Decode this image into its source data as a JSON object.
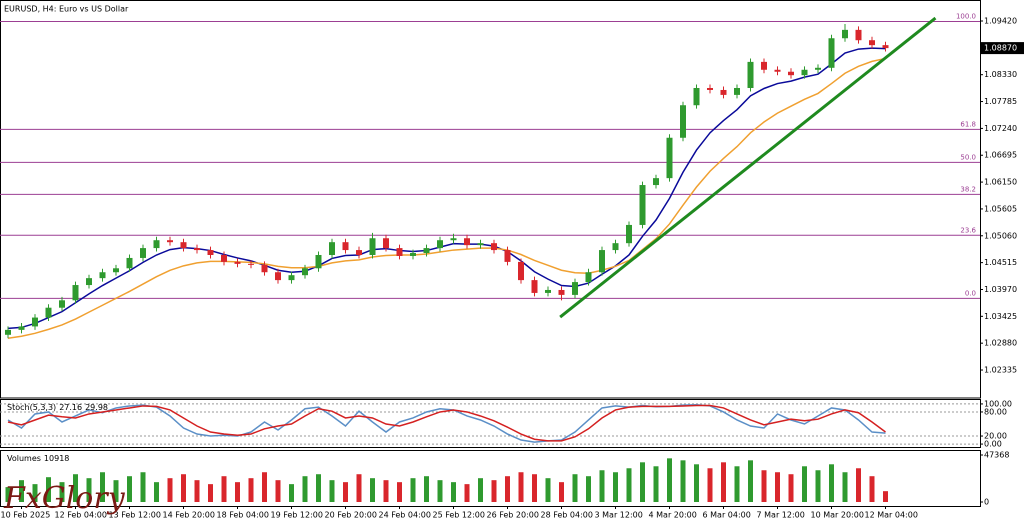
{
  "chart_data": [
    {
      "type": "candlestick",
      "title": "EURUSD, H4:  Euro vs US Dollar",
      "categories": [
        null,
        "10 Feb 2025",
        null,
        null,
        null,
        "12 Feb 04:00",
        null,
        null,
        null,
        "13 Feb 12:00",
        null,
        null,
        null,
        "14 Feb 20:00",
        null,
        null,
        null,
        "18 Feb 04:00",
        null,
        null,
        null,
        "19 Feb 12:00",
        null,
        null,
        null,
        "20 Feb 20:00",
        null,
        null,
        null,
        "24 Feb 04:00",
        null,
        null,
        null,
        "25 Feb 12:00",
        null,
        null,
        null,
        "26 Feb 20:00",
        null,
        null,
        null,
        "28 Feb 04:00",
        null,
        null,
        null,
        "3 Mar 12:00",
        null,
        null,
        null,
        "4 Mar 20:00",
        null,
        null,
        null,
        "6 Mar 04:00",
        null,
        null,
        null,
        "7 Mar 12:00",
        null,
        null,
        null,
        "10 Mar 20:00",
        null,
        null,
        null,
        "12 Mar 04:00"
      ],
      "open": [
        1.0305,
        1.0315,
        1.0322,
        1.034,
        1.036,
        1.0375,
        1.0406,
        1.042,
        1.0432,
        1.044,
        1.0461,
        1.0481,
        1.0497,
        1.0493,
        1.0481,
        1.0477,
        1.0467,
        1.0453,
        1.0449,
        1.0447,
        1.0432,
        1.0416,
        1.0426,
        1.044,
        1.0467,
        1.0493,
        1.0477,
        1.0467,
        1.0501,
        1.0481,
        1.0465,
        1.0471,
        1.0481,
        1.0497,
        1.0501,
        1.0487,
        1.0491,
        1.0477,
        1.0453,
        1.0416,
        1.039,
        1.0396,
        1.0386,
        1.0412,
        1.0432,
        1.0477,
        1.0491,
        1.0528,
        1.0609,
        1.0623,
        1.0705,
        1.0771,
        1.0806,
        1.0802,
        1.0792,
        1.0806,
        1.0859,
        1.0843,
        1.0839,
        1.0832,
        1.0843,
        1.0847,
        1.0907,
        1.0924,
        1.0903,
        1.0893
      ],
      "high": [
        1.0322,
        1.0329,
        1.0347,
        1.0367,
        1.0382,
        1.0413,
        1.0427,
        1.0439,
        1.0447,
        1.0468,
        1.0488,
        1.0504,
        1.0504,
        1.05,
        1.0488,
        1.0484,
        1.0474,
        1.046,
        1.0456,
        1.0454,
        1.0439,
        1.0433,
        1.0447,
        1.0474,
        1.05,
        1.05,
        1.0484,
        1.0512,
        1.0508,
        1.0488,
        1.0478,
        1.0488,
        1.0504,
        1.051,
        1.0508,
        1.0498,
        1.0498,
        1.0484,
        1.046,
        1.0423,
        1.0403,
        1.0403,
        1.0419,
        1.0439,
        1.0484,
        1.0498,
        1.0535,
        1.0616,
        1.063,
        1.0712,
        1.0778,
        1.0813,
        1.0813,
        1.0809,
        1.0813,
        1.0866,
        1.0866,
        1.085,
        1.0846,
        1.085,
        1.0854,
        1.0914,
        1.0936,
        1.0931,
        1.091,
        1.09
      ],
      "low": [
        1.0298,
        1.0308,
        1.0315,
        1.0333,
        1.0353,
        1.0368,
        1.0399,
        1.0413,
        1.0425,
        1.0433,
        1.0454,
        1.0474,
        1.0486,
        1.0474,
        1.047,
        1.046,
        1.0446,
        1.0442,
        1.044,
        1.0425,
        1.0409,
        1.0409,
        1.0419,
        1.0433,
        1.046,
        1.047,
        1.046,
        1.046,
        1.0474,
        1.0458,
        1.0458,
        1.0464,
        1.0474,
        1.049,
        1.048,
        1.048,
        1.047,
        1.0446,
        1.0409,
        1.0383,
        1.0383,
        1.0375,
        1.0379,
        1.0405,
        1.0425,
        1.047,
        1.0484,
        1.0521,
        1.0602,
        1.0616,
        1.0698,
        1.0764,
        1.0795,
        1.0785,
        1.0785,
        1.0799,
        1.0836,
        1.0832,
        1.0825,
        1.0825,
        1.0836,
        1.084,
        1.09,
        1.0896,
        1.0886,
        1.088
      ],
      "close": [
        1.0315,
        1.0322,
        1.034,
        1.036,
        1.0375,
        1.0406,
        1.042,
        1.0432,
        1.044,
        1.0461,
        1.0481,
        1.0497,
        1.0493,
        1.0481,
        1.0477,
        1.0467,
        1.0453,
        1.0449,
        1.0447,
        1.0432,
        1.0416,
        1.0426,
        1.044,
        1.0467,
        1.0493,
        1.0477,
        1.0467,
        1.0501,
        1.0481,
        1.0465,
        1.0471,
        1.0481,
        1.0497,
        1.0501,
        1.0487,
        1.0491,
        1.0477,
        1.0453,
        1.0416,
        1.039,
        1.0396,
        1.0386,
        1.0412,
        1.0432,
        1.0477,
        1.0491,
        1.0528,
        1.0609,
        1.0623,
        1.0705,
        1.0771,
        1.0806,
        1.0802,
        1.0792,
        1.0806,
        1.0859,
        1.0843,
        1.0839,
        1.0832,
        1.0843,
        1.0847,
        1.0907,
        1.0924,
        1.0903,
        1.0893,
        1.0887
      ],
      "up_color": "#2f9a2f",
      "down_color": "#d9262c",
      "series": [
        {
          "color": "#0a0a9a",
          "values": [
            1.0318,
            1.032,
            1.0328,
            1.034,
            1.0352,
            1.037,
            1.0388,
            1.0405,
            1.042,
            1.0435,
            1.0452,
            1.0467,
            1.0478,
            1.0482,
            1.048,
            1.0476,
            1.0468,
            1.0461,
            1.0455,
            1.0446,
            1.0436,
            1.0432,
            1.0434,
            1.0445,
            1.046,
            1.0466,
            1.0467,
            1.0478,
            1.048,
            1.0476,
            1.0474,
            1.0476,
            1.0483,
            1.049,
            1.0489,
            1.0489,
            1.0485,
            1.0474,
            1.0455,
            1.0433,
            1.0418,
            1.0405,
            1.0403,
            1.041,
            1.0428,
            1.0445,
            1.0467,
            1.0505,
            1.0538,
            1.0582,
            1.0635,
            1.068,
            1.0715,
            1.074,
            1.0762,
            1.079,
            1.0805,
            1.0815,
            1.082,
            1.0828,
            1.0834,
            1.0855,
            1.0877,
            1.0885,
            1.0887,
            1.0886
          ]
        },
        {
          "color": "#f0a030",
          "values": [
            1.0298,
            1.0302,
            1.0308,
            1.0316,
            1.0325,
            1.0337,
            1.0351,
            1.0365,
            1.0379,
            1.0393,
            1.0408,
            1.0423,
            1.0436,
            1.0445,
            1.0451,
            1.0454,
            1.0454,
            1.0453,
            1.0452,
            1.0449,
            1.0444,
            1.0441,
            1.0441,
            1.0444,
            1.0451,
            1.0455,
            1.0457,
            1.0463,
            1.0466,
            1.0467,
            1.0467,
            1.0469,
            1.0473,
            1.0477,
            1.0479,
            1.0481,
            1.0481,
            1.0477,
            1.0468,
            1.0456,
            1.0446,
            1.0436,
            1.0431,
            1.043,
            1.0436,
            1.0444,
            1.0456,
            1.0478,
            1.05,
            1.053,
            1.0568,
            1.0605,
            1.0637,
            1.0663,
            1.0687,
            1.0715,
            1.0737,
            1.0755,
            1.0769,
            1.0783,
            1.0795,
            1.0815,
            1.0836,
            1.085,
            1.086,
            1.0866
          ]
        }
      ],
      "fib_color": "#9c3f93",
      "fib_levels": [
        {
          "label": "100.0",
          "price": 1.0941
        },
        {
          "label": "61.8",
          "price": 1.0722
        },
        {
          "label": "50.0",
          "price": 1.0655
        },
        {
          "label": "38.2",
          "price": 1.059
        },
        {
          "label": "23.6",
          "price": 1.0507
        },
        {
          "label": "0.0",
          "price": 1.0379
        }
      ],
      "trendline": {
        "color": "#1f8a1f",
        "x": [
          40.9,
          68.7
        ],
        "y": [
          1.0341,
          1.0948
        ]
      },
      "current_price": {
        "value": 1.0887,
        "label": "1.08870"
      },
      "ylim": [
        1.01767,
        1.09826
      ],
      "yticks": [
        {
          "value": 1.0942,
          "label": "1.09420"
        },
        {
          "value": 1.0833,
          "label": "1.08330"
        },
        {
          "value": 1.07785,
          "label": "1.07785"
        },
        {
          "value": 1.0724,
          "label": "1.07240"
        },
        {
          "value": 1.06695,
          "label": "1.06695"
        },
        {
          "value": 1.0615,
          "label": "1.06150"
        },
        {
          "value": 1.05605,
          "label": "1.05605"
        },
        {
          "value": 1.0506,
          "label": "1.05060"
        },
        {
          "value": 1.04515,
          "label": "1.04515"
        },
        {
          "value": 1.0397,
          "label": "1.03970"
        },
        {
          "value": 1.03425,
          "label": "1.03425"
        },
        {
          "value": 1.0288,
          "label": "1.02880"
        },
        {
          "value": 1.02335,
          "label": "1.02335"
        }
      ]
    },
    {
      "type": "line",
      "title": "Stoch(5,3,3)",
      "series": [
        {
          "color": "#5b8fc7",
          "values": [
            60,
            40,
            75,
            80,
            55,
            70,
            85,
            78,
            90,
            95,
            97,
            92,
            70,
            40,
            25,
            20,
            22,
            20,
            30,
            55,
            35,
            60,
            88,
            92,
            70,
            45,
            82,
            55,
            30,
            55,
            65,
            80,
            88,
            85,
            70,
            60,
            45,
            25,
            10,
            5,
            8,
            10,
            30,
            60,
            90,
            95,
            92,
            96,
            93,
            94,
            97,
            98,
            95,
            80,
            60,
            45,
            40,
            75,
            60,
            50,
            70,
            90,
            85,
            60,
            30,
            27.16
          ]
        },
        {
          "color": "#d42020",
          "values": [
            55,
            48,
            60,
            72,
            68,
            65,
            75,
            80,
            85,
            90,
            95,
            94,
            85,
            65,
            45,
            30,
            25,
            22,
            25,
            38,
            45,
            50,
            70,
            88,
            82,
            65,
            70,
            65,
            50,
            45,
            55,
            68,
            80,
            85,
            80,
            70,
            58,
            42,
            25,
            12,
            8,
            8,
            18,
            38,
            65,
            85,
            92,
            94,
            94,
            94,
            95,
            96,
            96,
            90,
            75,
            60,
            48,
            55,
            62,
            58,
            62,
            75,
            85,
            78,
            55,
            29.98
          ]
        }
      ],
      "ylim": [
        -9.8,
        109.8
      ],
      "yticks": [
        {
          "value": 100,
          "label": "100.00"
        },
        {
          "value": 80,
          "label": "80.00"
        },
        {
          "value": 20,
          "label": "20.00"
        },
        {
          "value": 0,
          "label": "0.00"
        }
      ],
      "grid": true
    },
    {
      "type": "bar",
      "title": "Volumes",
      "values": [
        15000,
        22000,
        18000,
        25000,
        20000,
        28000,
        24000,
        30000,
        22000,
        26000,
        30000,
        20000,
        24000,
        28000,
        22000,
        18000,
        26000,
        20000,
        24000,
        30000,
        22000,
        18000,
        26000,
        28000,
        22000,
        20000,
        28000,
        24000,
        22000,
        20000,
        24000,
        26000,
        22000,
        20000,
        18000,
        24000,
        22000,
        26000,
        30000,
        28000,
        24000,
        20000,
        28000,
        26000,
        32000,
        30000,
        34000,
        40000,
        36000,
        44000,
        42000,
        38000,
        34000,
        40000,
        36000,
        42000,
        32000,
        30000,
        28000,
        36000,
        32000,
        38000,
        30000,
        34000,
        26000,
        10918
      ],
      "ylim": [
        -4031,
        51400
      ],
      "yticks": [
        47368,
        0
      ]
    }
  ],
  "logo": "FxGlory"
}
